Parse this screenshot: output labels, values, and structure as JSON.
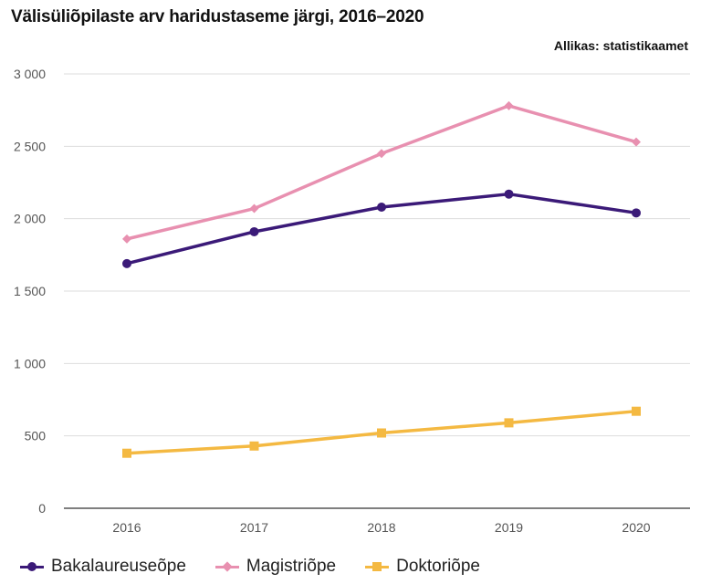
{
  "title": "Välisüliõpilaste arv haridustaseme järgi, 2016–2020",
  "source": "Allikas: statistikaamet",
  "chart_data": {
    "type": "line",
    "title": "Välisüliõpilaste arv haridustaseme järgi, 2016–2020",
    "x": [
      "2016",
      "2017",
      "2018",
      "2019",
      "2020"
    ],
    "y_ticks": [
      "0",
      "500",
      "1 000",
      "1 500",
      "2 000",
      "2 500",
      "3 000"
    ],
    "y_tick_values": [
      0,
      500,
      1000,
      1500,
      2000,
      2500,
      3000
    ],
    "ylim": [
      0,
      3000
    ],
    "grid": true,
    "legend_position": "bottom-left",
    "series": [
      {
        "name": "Bakalaureuseõpe",
        "values": [
          1690,
          1910,
          2080,
          2170,
          2040
        ],
        "color": "#3b1a78",
        "marker": "circle"
      },
      {
        "name": "Magistriõpe",
        "values": [
          1860,
          2070,
          2450,
          2780,
          2530
        ],
        "color": "#e890b0",
        "marker": "diamond"
      },
      {
        "name": "Doktoriõpe",
        "values": [
          380,
          430,
          520,
          590,
          670
        ],
        "color": "#f4b942",
        "marker": "square"
      }
    ]
  }
}
